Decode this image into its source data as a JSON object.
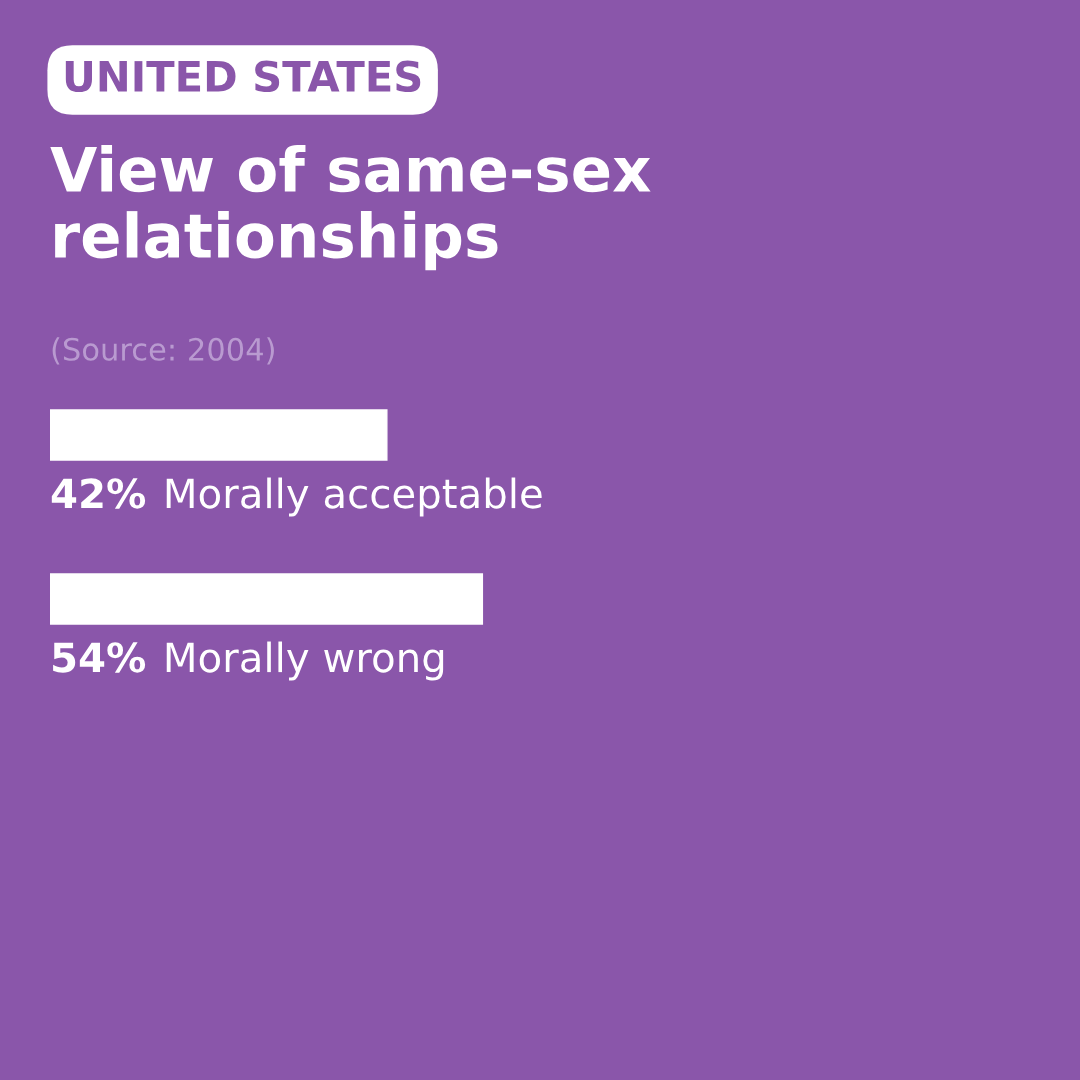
{
  "chart_data": {
    "type": "bar",
    "orientation": "horizontal",
    "subtitle": "UNITED STATES",
    "title": "View of same-sex relationships",
    "annotations": [
      "(Source: 2004)"
    ],
    "categories": [
      "Morally acceptable",
      "Morally wrong"
    ],
    "values": [
      42,
      54
    ],
    "value_labels": [
      "42%",
      "54%"
    ],
    "color": "#ffffff"
  }
}
